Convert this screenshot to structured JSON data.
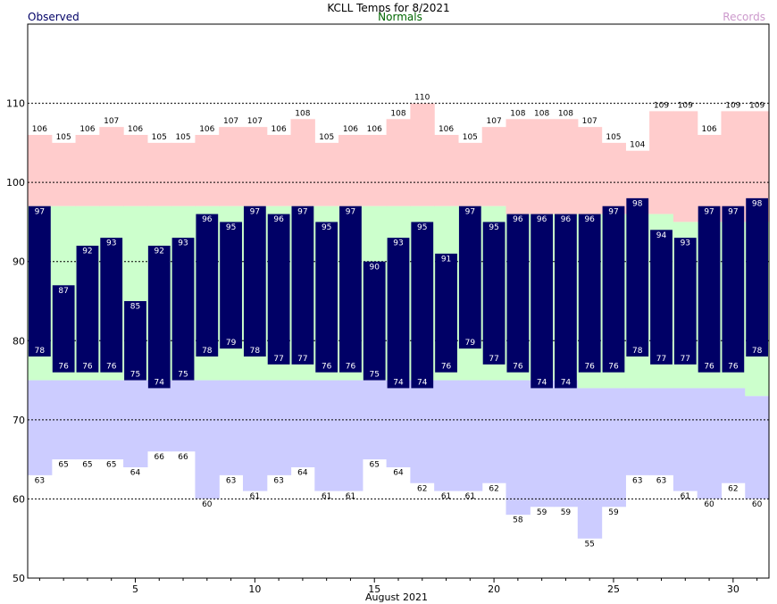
{
  "chart_data": {
    "type": "bar",
    "title": "KCLL Temps for 8/2021",
    "xlabel": "August 2021",
    "ylabel": "",
    "ylim": [
      50,
      120
    ],
    "yticks": [
      50,
      60,
      70,
      80,
      90,
      100,
      110
    ],
    "xticks": [
      5,
      10,
      15,
      20,
      25,
      30
    ],
    "gridlines": "dotted at 60, 70, 80, 90, 100, 110",
    "legend": [
      {
        "label": "Observed",
        "color": "#000066",
        "placement": "top-left"
      },
      {
        "label": "Normals",
        "color": "#006600",
        "placement": "top-center"
      },
      {
        "label": "Records",
        "color": "#cc99cc",
        "placement": "top-right"
      }
    ],
    "colors": {
      "observed": "#000066",
      "normal": "#ccffcc",
      "record_high": "#ffcccc",
      "record_low": "#ccccff"
    },
    "days": [
      1,
      2,
      3,
      4,
      5,
      6,
      7,
      8,
      9,
      10,
      11,
      12,
      13,
      14,
      15,
      16,
      17,
      18,
      19,
      20,
      21,
      22,
      23,
      24,
      25,
      26,
      27,
      28,
      29,
      30,
      31
    ],
    "series": [
      {
        "name": "Observed High",
        "values": [
          97,
          87,
          92,
          93,
          85,
          92,
          93,
          96,
          95,
          97,
          96,
          97,
          95,
          97,
          90,
          93,
          95,
          91,
          97,
          95,
          96,
          96,
          96,
          96,
          97,
          98,
          94,
          93,
          97,
          97,
          98
        ]
      },
      {
        "name": "Observed Low",
        "values": [
          78,
          76,
          76,
          76,
          75,
          74,
          75,
          78,
          79,
          78,
          77,
          77,
          76,
          76,
          75,
          74,
          74,
          76,
          79,
          77,
          76,
          74,
          74,
          76,
          76,
          78,
          77,
          77,
          76,
          76,
          78
        ]
      },
      {
        "name": "Record High",
        "values": [
          106,
          105,
          106,
          107,
          106,
          105,
          105,
          106,
          107,
          107,
          106,
          108,
          105,
          106,
          106,
          108,
          110,
          106,
          105,
          107,
          108,
          108,
          108,
          107,
          105,
          104,
          109,
          109,
          106,
          109,
          109
        ]
      },
      {
        "name": "Record Low",
        "values": [
          63,
          65,
          65,
          65,
          64,
          66,
          66,
          60,
          63,
          61,
          63,
          64,
          61,
          61,
          65,
          64,
          62,
          61,
          61,
          62,
          58,
          59,
          59,
          55,
          59,
          63,
          63,
          61,
          60,
          62,
          60
        ]
      },
      {
        "name": "Normal High",
        "values": [
          97,
          97,
          97,
          97,
          97,
          97,
          97,
          97,
          97,
          97,
          97,
          97,
          97,
          97,
          97,
          97,
          97,
          97,
          97,
          97,
          96,
          96,
          96,
          96,
          96,
          96,
          96,
          95,
          95,
          95,
          95
        ]
      },
      {
        "name": "Normal Low",
        "values": [
          75,
          75,
          75,
          75,
          75,
          75,
          75,
          75,
          75,
          75,
          75,
          75,
          75,
          75,
          75,
          75,
          75,
          75,
          75,
          75,
          75,
          75,
          75,
          74,
          74,
          74,
          74,
          74,
          74,
          74,
          73
        ]
      }
    ]
  }
}
